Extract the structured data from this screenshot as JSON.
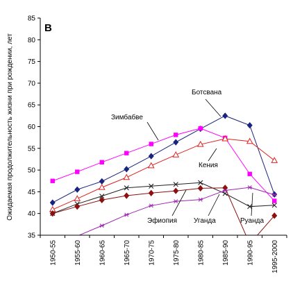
{
  "chart_data": {
    "type": "line",
    "panel_label": "B",
    "ylabel": "Ожидаемая продолжительность жизни при рождении, лет",
    "xlabel": "",
    "ylim": [
      35,
      85
    ],
    "yticks": [
      35,
      40,
      45,
      50,
      55,
      60,
      65,
      70,
      75,
      80,
      85
    ],
    "categories": [
      "1950-55",
      "1955-60",
      "1960-65",
      "1965-70",
      "1970-75",
      "1975-80",
      "1980-85",
      "1985-90",
      "1990-95",
      "1995-2000"
    ],
    "grid": false,
    "series": [
      {
        "name": "Ботсвана",
        "color": "#1a237e",
        "marker": "diamond",
        "values": [
          42.5,
          45.5,
          47.4,
          50.2,
          53.2,
          56.4,
          59.5,
          62.5,
          60.3,
          44.4
        ]
      },
      {
        "name": "Зимбабве",
        "color": "#ff00ff",
        "marker": "square",
        "values": [
          47.5,
          49.6,
          51.8,
          53.9,
          56.0,
          58.1,
          59.6,
          57.4,
          49.1,
          42.9
        ]
      },
      {
        "name": "Кения",
        "color": "#e02020",
        "marker": "triangle",
        "values": [
          40.9,
          43.4,
          46.0,
          48.3,
          51.0,
          53.5,
          55.9,
          57.2,
          56.6,
          52.2
        ]
      },
      {
        "name": "Эфиопия",
        "color": "#202020",
        "marker": "x",
        "values": [
          40.0,
          42.2,
          44.0,
          45.9,
          46.3,
          46.7,
          47.1,
          44.6,
          41.6,
          41.9
        ]
      },
      {
        "name": "Уганда",
        "color": "#8b1010",
        "marker": "diamond",
        "values": [
          40.0,
          41.6,
          43.1,
          44.1,
          44.7,
          45.2,
          45.8,
          45.9,
          33.0,
          39.5
        ]
      },
      {
        "name": "Руанда",
        "color": "#9c27b0",
        "marker": "star",
        "values": [
          33.0,
          34.8,
          37.2,
          39.7,
          41.8,
          42.8,
          43.2,
          45.3,
          46.0,
          44.3
        ]
      }
    ],
    "annotations": [
      {
        "text": "Ботсвана",
        "series": "Ботсвана"
      },
      {
        "text": "Зимбабве",
        "series": "Зимбабве"
      },
      {
        "text": "Кения",
        "series": "Кения"
      },
      {
        "text": "Эфиопия",
        "series": "Эфиопия"
      },
      {
        "text": "Уганда",
        "series": "Уганда"
      },
      {
        "text": "Руанда",
        "series": "Руанда"
      }
    ]
  }
}
